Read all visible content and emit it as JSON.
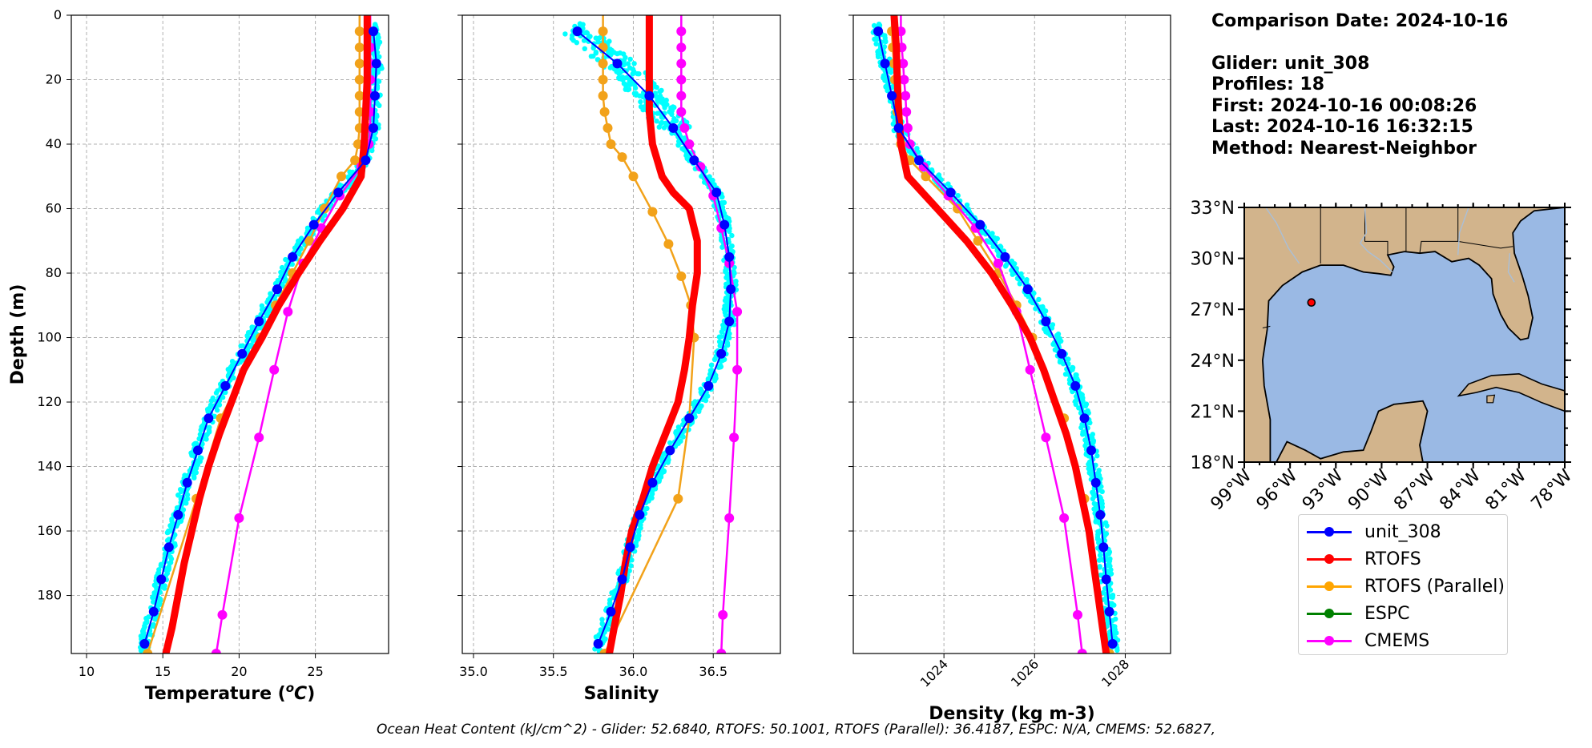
{
  "info": {
    "comparison_date": "Comparison Date: 2024-10-16",
    "glider": "Glider: unit_308",
    "profiles": "Profiles: 18",
    "first": "First: 2024-10-16 00:08:26",
    "last": "Last: 2024-10-16 16:32:15",
    "method": "Method: Nearest-Neighbor"
  },
  "footer": "Ocean Heat Content (kJ/cm^2) - Glider: 52.6840,  RTOFS: 50.1001,  RTOFS (Parallel): 36.4187,  ESPC: N/A,  CMEMS: 52.6827,",
  "legend": [
    {
      "label": "unit_308",
      "color": "#0000ff"
    },
    {
      "label": "RTOFS",
      "color": "#ff0000"
    },
    {
      "label": "RTOFS (Parallel)",
      "color": "#ffa500"
    },
    {
      "label": "ESPC",
      "color": "#008000"
    },
    {
      "label": "CMEMS",
      "color": "#ff00ff"
    }
  ],
  "colors": {
    "glider_raw": "#00ffff",
    "unit_308": "#0000ff",
    "rtofs": "#ff0000",
    "rtofs_parallel": "#f2a21a",
    "cmems": "#ff00ff",
    "ocean": "#9ab9e4",
    "land": "#d2b48c"
  },
  "chart_data": [
    {
      "type": "line",
      "xlabel_prefix": "Temperature (",
      "xlabel_sup": "o",
      "xlabel_suffix": "C)",
      "ylabel": "Depth (m)",
      "xlim": [
        9,
        29.8
      ],
      "ylim": [
        198,
        0
      ],
      "xticks": [
        10,
        15,
        20,
        25
      ],
      "yticks": [
        0,
        20,
        40,
        60,
        80,
        100,
        120,
        140,
        160,
        180
      ],
      "grid": true,
      "series": [
        {
          "name": "unit_308",
          "depth": [
            5,
            15,
            25,
            35,
            45,
            55,
            65,
            75,
            85,
            95,
            105,
            115,
            125,
            135,
            145,
            155,
            165,
            175,
            185,
            195
          ],
          "values": [
            28.8,
            29.0,
            28.9,
            28.8,
            28.3,
            26.5,
            24.9,
            23.5,
            22.5,
            21.3,
            20.2,
            19.1,
            18.0,
            17.3,
            16.6,
            16.0,
            15.4,
            14.9,
            14.4,
            13.8
          ]
        },
        {
          "name": "RTOFS",
          "depth": [
            0,
            10,
            20,
            30,
            40,
            50,
            60,
            70,
            80,
            90,
            100,
            110,
            120,
            130,
            140,
            150,
            160,
            170,
            180,
            190,
            198
          ],
          "values": [
            28.4,
            28.4,
            28.4,
            28.3,
            28.2,
            28.0,
            26.8,
            25.3,
            23.9,
            22.6,
            21.5,
            20.3,
            19.5,
            18.7,
            18.0,
            17.4,
            16.9,
            16.4,
            16.0,
            15.6,
            15.2
          ]
        },
        {
          "name": "RTOFS (Parallel)",
          "depth": [
            0,
            5,
            10,
            15,
            20,
            25,
            30,
            35,
            40,
            45,
            50,
            60,
            70,
            80,
            90,
            100,
            125,
            150,
            198
          ],
          "values": [
            27.9,
            27.9,
            27.9,
            27.9,
            27.9,
            27.9,
            27.9,
            27.9,
            27.8,
            27.6,
            26.7,
            25.6,
            24.6,
            23.5,
            22.4,
            21.4,
            18.8,
            17.2,
            14.0
          ]
        },
        {
          "name": "CMEMS",
          "depth": [
            0,
            5,
            10,
            15,
            20,
            25,
            30,
            35,
            40,
            47,
            56,
            66,
            77,
            92,
            110,
            131,
            156,
            186,
            198
          ],
          "values": [
            28.6,
            28.6,
            28.6,
            28.6,
            28.6,
            28.6,
            28.6,
            28.6,
            28.5,
            28.0,
            26.6,
            25.4,
            24.2,
            23.2,
            22.3,
            21.3,
            20.0,
            18.9,
            18.5
          ]
        }
      ]
    },
    {
      "type": "line",
      "xlabel": "Salinity",
      "xlim": [
        34.93,
        36.92
      ],
      "ylim": [
        198,
        0
      ],
      "xticks": [
        35.0,
        35.5,
        36.0,
        36.5
      ],
      "xtick_labels": [
        "35.0",
        "35.5",
        "36.0",
        "36.5"
      ],
      "yticks": [
        0,
        20,
        40,
        60,
        80,
        100,
        120,
        140,
        160,
        180
      ],
      "grid": true,
      "series": [
        {
          "name": "unit_308",
          "depth": [
            5,
            15,
            25,
            35,
            45,
            55,
            65,
            75,
            85,
            95,
            105,
            115,
            125,
            135,
            145,
            155,
            165,
            175,
            185,
            195
          ],
          "values": [
            35.65,
            35.9,
            36.1,
            36.25,
            36.38,
            36.52,
            36.57,
            36.6,
            36.61,
            36.6,
            36.55,
            36.47,
            36.35,
            36.23,
            36.12,
            36.04,
            35.98,
            35.93,
            35.86,
            35.78
          ]
        },
        {
          "name": "RTOFS",
          "depth": [
            0,
            10,
            20,
            30,
            40,
            50,
            55,
            60,
            70,
            80,
            90,
            100,
            110,
            120,
            130,
            140,
            150,
            160,
            170,
            180,
            190,
            198
          ],
          "values": [
            36.1,
            36.1,
            36.1,
            36.1,
            36.12,
            36.18,
            36.25,
            36.35,
            36.4,
            36.4,
            36.37,
            36.35,
            36.32,
            36.28,
            36.2,
            36.12,
            36.06,
            35.99,
            35.95,
            35.92,
            35.88,
            35.85
          ]
        },
        {
          "name": "RTOFS (Parallel)",
          "depth": [
            0,
            5,
            10,
            15,
            20,
            25,
            30,
            35,
            40,
            44,
            50,
            61,
            71,
            81,
            90,
            100,
            125,
            150,
            198
          ],
          "values": [
            35.81,
            35.81,
            35.81,
            35.81,
            35.81,
            35.81,
            35.82,
            35.84,
            35.86,
            35.93,
            36.0,
            36.12,
            36.22,
            36.3,
            36.36,
            36.38,
            36.35,
            36.28,
            35.82
          ]
        },
        {
          "name": "CMEMS",
          "depth": [
            0,
            5,
            10,
            15,
            20,
            25,
            30,
            35,
            40,
            47,
            56,
            66,
            77,
            92,
            110,
            131,
            156,
            186,
            198
          ],
          "values": [
            36.3,
            36.3,
            36.3,
            36.3,
            36.3,
            36.3,
            36.3,
            36.32,
            36.35,
            36.42,
            36.5,
            36.55,
            36.6,
            36.65,
            36.65,
            36.63,
            36.6,
            36.56,
            36.55
          ]
        }
      ]
    },
    {
      "type": "line",
      "xlabel": "Density (kg m-3)",
      "xlim": [
        1022.0,
        1029.0
      ],
      "ylim": [
        198,
        0
      ],
      "xticks": [
        1024,
        1026,
        1028
      ],
      "xtick_labels": [
        "1024",
        "1026",
        "1028"
      ],
      "yticks": [
        0,
        20,
        40,
        60,
        80,
        100,
        120,
        140,
        160,
        180
      ],
      "grid": true,
      "series": [
        {
          "name": "unit_308",
          "depth": [
            5,
            15,
            25,
            35,
            45,
            55,
            65,
            75,
            85,
            95,
            105,
            115,
            125,
            135,
            145,
            155,
            165,
            175,
            185,
            195
          ],
          "values": [
            1022.55,
            1022.7,
            1022.85,
            1023.0,
            1023.45,
            1024.15,
            1024.8,
            1025.35,
            1025.85,
            1026.25,
            1026.6,
            1026.9,
            1027.1,
            1027.25,
            1027.35,
            1027.45,
            1027.52,
            1027.58,
            1027.65,
            1027.72
          ]
        },
        {
          "name": "RTOFS",
          "depth": [
            0,
            10,
            20,
            30,
            40,
            50,
            60,
            70,
            80,
            90,
            100,
            110,
            120,
            130,
            140,
            150,
            160,
            170,
            180,
            190,
            198
          ],
          "values": [
            1022.9,
            1022.95,
            1022.97,
            1023.0,
            1023.05,
            1023.2,
            1023.85,
            1024.5,
            1025.05,
            1025.5,
            1025.9,
            1026.2,
            1026.45,
            1026.7,
            1026.9,
            1027.05,
            1027.2,
            1027.3,
            1027.4,
            1027.5,
            1027.58
          ]
        },
        {
          "name": "RTOFS (Parallel)",
          "depth": [
            0,
            5,
            10,
            15,
            20,
            25,
            30,
            35,
            40,
            45,
            50,
            60,
            70,
            80,
            90,
            100,
            125,
            150,
            198
          ],
          "values": [
            1022.85,
            1022.85,
            1022.87,
            1022.9,
            1022.92,
            1022.95,
            1022.97,
            1023.0,
            1023.05,
            1023.25,
            1023.6,
            1024.3,
            1024.75,
            1025.2,
            1025.6,
            1025.95,
            1026.65,
            1027.1,
            1027.65
          ]
        },
        {
          "name": "CMEMS",
          "depth": [
            0,
            5,
            10,
            15,
            20,
            25,
            30,
            35,
            40,
            47,
            56,
            66,
            77,
            92,
            110,
            131,
            156,
            186,
            198
          ],
          "values": [
            1023.05,
            1023.05,
            1023.07,
            1023.1,
            1023.12,
            1023.15,
            1023.17,
            1023.2,
            1023.25,
            1023.55,
            1024.1,
            1024.7,
            1025.2,
            1025.6,
            1025.9,
            1026.25,
            1026.65,
            1026.95,
            1027.05
          ]
        }
      ]
    }
  ],
  "map": {
    "lon_range": [
      -99,
      -78
    ],
    "lat_range": [
      18,
      33
    ],
    "lon_ticks": [
      "99°W",
      "96°W",
      "93°W",
      "90°W",
      "87°W",
      "84°W",
      "81°W",
      "78°W"
    ],
    "lat_ticks": [
      "33°N",
      "30°N",
      "27°N",
      "24°N",
      "21°N",
      "18°N"
    ],
    "glider_position": {
      "lon": -94.6,
      "lat": 27.4
    }
  }
}
